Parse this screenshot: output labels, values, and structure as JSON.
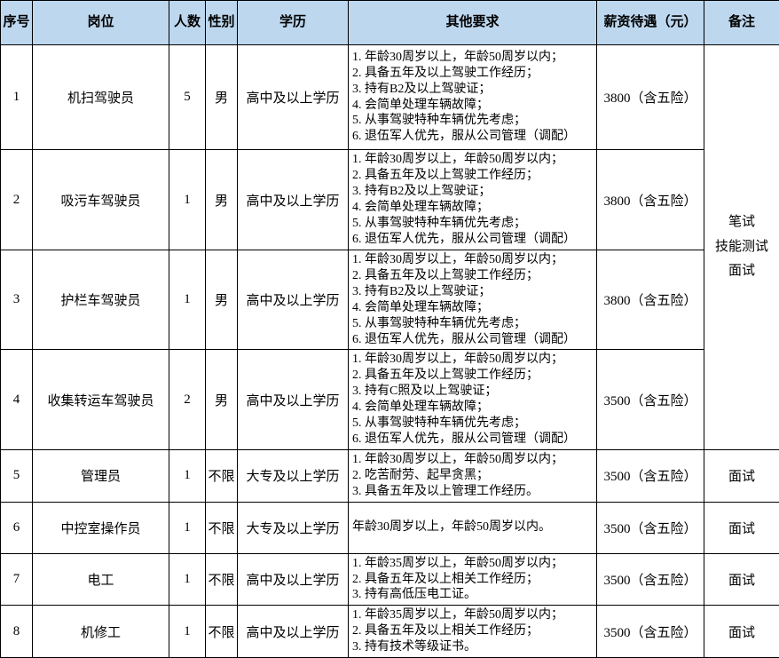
{
  "table": {
    "headers": [
      "序号",
      "岗位",
      "人数",
      "性别",
      "学历",
      "其他要求",
      "薪资待遇（元）",
      "备注"
    ],
    "remark_merged": "笔试\n技能测试\n面试",
    "rows": [
      {
        "no": "1",
        "position": "机扫驾驶员",
        "count": "5",
        "gender": "男",
        "education": "高中及以上学历",
        "requirements": "1. 年龄30周岁以上，年龄50周岁以内；\n2. 具备五年及以上驾驶工作经历；\n3. 持有B2及以上驾驶证；\n4. 会简单处理车辆故障；\n5. 从事驾驶特种车辆优先考虑；\n6. 退伍军人优先，服从公司管理（调配）",
        "salary": "3800（含五险）",
        "remark": ""
      },
      {
        "no": "2",
        "position": "吸污车驾驶员",
        "count": "1",
        "gender": "男",
        "education": "高中及以上学历",
        "requirements": "1. 年龄30周岁以上，年龄50周岁以内；\n2. 具备五年及以上驾驶工作经历；\n3. 持有B2及以上驾驶证；\n4. 会简单处理车辆故障；\n5. 从事驾驶特种车辆优先考虑；\n6. 退伍军人优先，服从公司管理（调配）",
        "salary": "3800（含五险）",
        "remark": ""
      },
      {
        "no": "3",
        "position": "护栏车驾驶员",
        "count": "1",
        "gender": "男",
        "education": "高中及以上学历",
        "requirements": "1. 年龄30周岁以上，年龄50周岁以内；\n2. 具备五年及以上驾驶工作经历；\n3. 持有B2及以上驾驶证；\n4. 会简单处理车辆故障；\n5. 从事驾驶特种车辆优先考虑；\n6. 退伍军人优先，服从公司管理（调配）",
        "salary": "3800（含五险）",
        "remark": ""
      },
      {
        "no": "4",
        "position": "收集转运车驾驶员",
        "count": "2",
        "gender": "男",
        "education": "高中及以上学历",
        "requirements": "1. 年龄30周岁以上，年龄50周岁以内；\n2. 具备五年及以上驾驶工作经历；\n3. 持有C照及以上驾驶证；\n4. 会简单处理车辆故障；\n5. 从事驾驶特种车辆优先考虑；\n6. 退伍军人优先，服从公司管理（调配）",
        "salary": "3500（含五险）",
        "remark": ""
      },
      {
        "no": "5",
        "position": "管理员",
        "count": "1",
        "gender": "不限",
        "education": "大专及以上学历",
        "requirements": "1. 年龄30周岁以上，年龄50周岁以内；\n2. 吃苦耐劳、起早贪黑；\n3. 具备五年及以上管理工作经历。",
        "salary": "3500（含五险）",
        "remark": "面试"
      },
      {
        "no": "6",
        "position": "中控室操作员",
        "count": "1",
        "gender": "不限",
        "education": "大专及以上学历",
        "requirements": "年龄30周岁以上，年龄50周岁以内。",
        "salary": "3500（含五险）",
        "remark": "面试"
      },
      {
        "no": "7",
        "position": "电工",
        "count": "1",
        "gender": "不限",
        "education": "高中及以上学历",
        "requirements": "1. 年龄35周岁以上，年龄50周岁以内；\n2. 具备五年及以上相关工作经历；\n3. 持有高低压电工证。",
        "salary": "3500（含五险）",
        "remark": "面试"
      },
      {
        "no": "8",
        "position": "机修工",
        "count": "1",
        "gender": "不限",
        "education": "高中及以上学历",
        "requirements": "1. 年龄35周岁以上，年龄50周岁以内；\n2. 具备五年及以上相关工作经历；\n3. 持有技术等级证书。",
        "salary": "3500（含五险）",
        "remark": "面试"
      }
    ]
  }
}
